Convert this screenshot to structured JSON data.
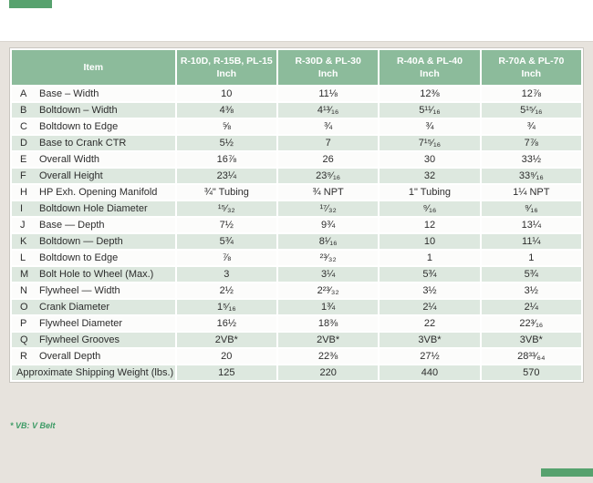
{
  "page": {
    "background_color": "#e7e3dd",
    "accent_green": "#57a26e",
    "header_green": "#8cbb9b",
    "row_tint_green": "#dde8df",
    "footnote_green": "#3e9b66",
    "footnote": "* VB: V Belt"
  },
  "table": {
    "header": {
      "item_label": "Item",
      "columns": [
        {
          "models": "R-10D, R-15B, PL-15",
          "unit": "Inch"
        },
        {
          "models": "R-30D & PL-30",
          "unit": "Inch"
        },
        {
          "models": "R-40A & PL-40",
          "unit": "Inch"
        },
        {
          "models": "R-70A & PL-70",
          "unit": "Inch"
        }
      ]
    },
    "rows": [
      {
        "key": "A",
        "item": "Base – Width",
        "values": [
          "10",
          "11⅛",
          "12⅜",
          "12⅞"
        ]
      },
      {
        "key": "B",
        "item": "Boltdown – Width",
        "values": [
          "4⅜",
          "4¹³⁄₁₆",
          "5¹¹⁄₁₆",
          "5¹⁵⁄₁₆"
        ]
      },
      {
        "key": "C",
        "item": "Boltdown to Edge",
        "values": [
          "⅝",
          "¾",
          "¾",
          "¾"
        ]
      },
      {
        "key": "D",
        "item": "Base to Crank CTR",
        "values": [
          "5½",
          "7",
          "7¹⁵⁄₁₆",
          "7⅞"
        ]
      },
      {
        "key": "E",
        "item": "Overall Width",
        "values": [
          "16⅞",
          "26",
          "30",
          "33½"
        ]
      },
      {
        "key": "F",
        "item": "Overall Height",
        "values": [
          "23¼",
          "23⁹⁄₁₆",
          "32",
          "33⁹⁄₁₆"
        ]
      },
      {
        "key": "H",
        "item": "HP Exh. Opening Manifold",
        "values": [
          "¾\" Tubing",
          "¾ NPT",
          "1\" Tubing",
          "1¼ NPT"
        ]
      },
      {
        "key": "I",
        "item": "Boltdown Hole Diameter",
        "values": [
          "¹⁵⁄₃₂",
          "¹⁷⁄₃₂",
          "⁹⁄₁₆",
          "⁹⁄₁₆"
        ]
      },
      {
        "key": "J",
        "item": "Base — Depth",
        "values": [
          "7½",
          "9¾",
          "12",
          "13¼"
        ]
      },
      {
        "key": "K",
        "item": "Boltdown — Depth",
        "values": [
          "5¾",
          "8¹⁄₁₆",
          "10",
          "11¼"
        ]
      },
      {
        "key": "L",
        "item": "Boltdown to Edge",
        "values": [
          "⅞",
          "²³⁄₃₂",
          "1",
          "1"
        ]
      },
      {
        "key": "M",
        "item": "Bolt Hole to Wheel (Max.)",
        "values": [
          "3",
          "3¼",
          "5¾",
          "5¾"
        ]
      },
      {
        "key": "N",
        "item": "Flywheel — Width",
        "values": [
          "2½",
          "2²³⁄₃₂",
          "3½",
          "3½"
        ]
      },
      {
        "key": "O",
        "item": "Crank Diameter",
        "values": [
          "1⁵⁄₁₆",
          "1¾",
          "2¼",
          "2¼"
        ]
      },
      {
        "key": "P",
        "item": "Flywheel Diameter",
        "values": [
          "16½",
          "18⅜",
          "22",
          "22³⁄₁₆"
        ]
      },
      {
        "key": "Q",
        "item": "Flywheel Grooves",
        "values": [
          "2VB*",
          "2VB*",
          "3VB*",
          "3VB*"
        ]
      },
      {
        "key": "R",
        "item": "Overall Depth",
        "values": [
          "20",
          "22⅜",
          "27½",
          "28³³⁄₆₄"
        ]
      }
    ],
    "footer_row": {
      "item": "Approximate Shipping Weight (lbs.)",
      "values": [
        "125",
        "220",
        "440",
        "570"
      ]
    }
  }
}
